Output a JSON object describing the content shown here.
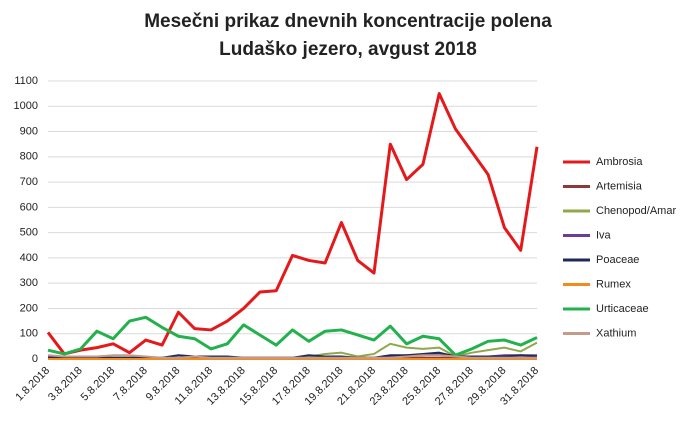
{
  "chart_data": {
    "type": "line",
    "title": "Mesečni prikaz dnevnih koncentracije polena",
    "subtitle": "Ludaško jezero, avgust 2018",
    "categories": [
      "1.8.2018",
      null,
      "3.8.2018",
      null,
      "5.8.2018",
      null,
      "7.8.2018",
      null,
      "9.8.2018",
      null,
      "11.8.2018",
      null,
      "13.8.2018",
      null,
      "15.8.2018",
      null,
      "17.8.2018",
      null,
      "19.8.2018",
      null,
      "21.8.2018",
      null,
      "23.8.2018",
      null,
      "25.8.2018",
      null,
      "27.8.2018",
      null,
      "29.8.2018",
      null,
      "31.8.2018"
    ],
    "series": [
      {
        "name": "Ambrosia",
        "color": "#e3191c",
        "values": [
          105,
          20,
          35,
          45,
          60,
          25,
          75,
          55,
          185,
          120,
          115,
          150,
          200,
          265,
          270,
          410,
          390,
          380,
          540,
          390,
          340,
          850,
          710,
          770,
          1050,
          910,
          820,
          730,
          520,
          430,
          840
        ]
      },
      {
        "name": "Artemisia",
        "color": "#8b3a3a",
        "values": [
          10,
          5,
          5,
          5,
          5,
          5,
          5,
          5,
          5,
          5,
          5,
          5,
          5,
          5,
          5,
          5,
          5,
          5,
          5,
          5,
          5,
          5,
          5,
          5,
          5,
          5,
          5,
          5,
          5,
          5,
          5
        ]
      },
      {
        "name": "Chenopod/Amar",
        "color": "#8fa84a",
        "values": [
          0,
          0,
          0,
          0,
          0,
          0,
          0,
          0,
          0,
          0,
          0,
          0,
          0,
          0,
          0,
          5,
          10,
          20,
          25,
          10,
          20,
          60,
          45,
          40,
          45,
          10,
          25,
          35,
          45,
          30,
          65
        ]
      },
      {
        "name": "Iva",
        "color": "#6a3d9a",
        "values": [
          0,
          0,
          0,
          0,
          0,
          0,
          0,
          0,
          0,
          0,
          0,
          0,
          0,
          0,
          0,
          0,
          0,
          0,
          0,
          0,
          5,
          10,
          15,
          15,
          20,
          10,
          10,
          10,
          15,
          15,
          15
        ]
      },
      {
        "name": "Poaceae",
        "color": "#1f2a5a",
        "values": [
          5,
          5,
          5,
          5,
          5,
          5,
          5,
          5,
          15,
          10,
          10,
          10,
          5,
          5,
          5,
          5,
          15,
          10,
          10,
          5,
          5,
          15,
          15,
          20,
          25,
          10,
          10,
          10,
          10,
          15,
          10
        ]
      },
      {
        "name": "Rumex",
        "color": "#f28a1c",
        "values": [
          0,
          0,
          0,
          0,
          0,
          0,
          0,
          0,
          0,
          0,
          0,
          0,
          0,
          0,
          0,
          0,
          0,
          0,
          0,
          0,
          0,
          0,
          0,
          0,
          0,
          0,
          0,
          0,
          0,
          0,
          0
        ]
      },
      {
        "name": "Urticaceae",
        "color": "#22b14c",
        "values": [
          35,
          20,
          40,
          110,
          80,
          150,
          165,
          125,
          90,
          80,
          40,
          60,
          135,
          95,
          55,
          115,
          70,
          110,
          115,
          95,
          75,
          130,
          60,
          90,
          80,
          15,
          40,
          70,
          75,
          55,
          85
        ]
      },
      {
        "name": "Xathium",
        "color": "#c49a8a",
        "values": [
          15,
          10,
          10,
          10,
          15,
          15,
          10,
          5,
          5,
          10,
          5,
          5,
          5,
          5,
          5,
          5,
          5,
          5,
          5,
          5,
          5,
          5,
          10,
          15,
          15,
          10,
          5,
          5,
          5,
          5,
          5
        ]
      }
    ],
    "ylim": [
      0,
      1100
    ],
    "yticks": [
      0,
      100,
      200,
      300,
      400,
      500,
      600,
      700,
      800,
      900,
      1000,
      1100
    ],
    "grid": true,
    "legend": "right"
  }
}
